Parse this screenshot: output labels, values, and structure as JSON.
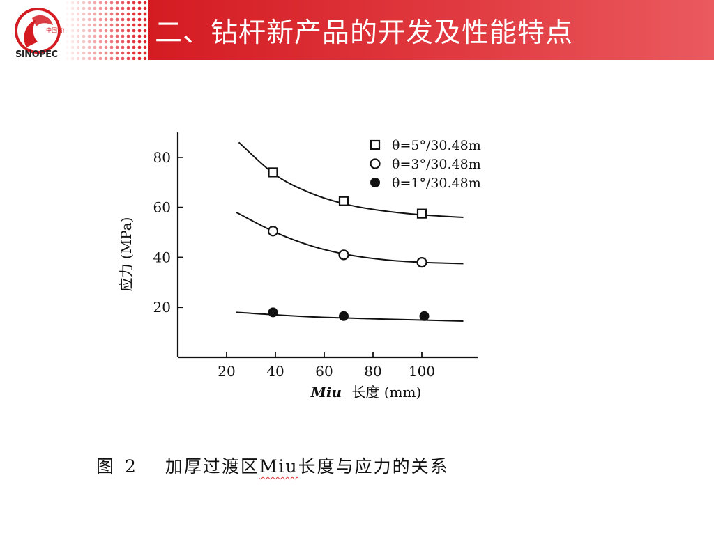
{
  "header": {
    "title": "二、钻杆新产品的开发及性能特点",
    "logo": {
      "icon": "sinopec-logo-icon",
      "wordmark": "SINOPEC",
      "brand_color": "#d41b22"
    },
    "bar_color": "#d41b22"
  },
  "chart_data": {
    "type": "scatter",
    "title": "",
    "xlabel_italic": "Miu",
    "xlabel_rest": "长度 (mm)",
    "ylabel": "应力 (MPa)",
    "xlim": [
      0,
      120
    ],
    "ylim": [
      0,
      90
    ],
    "x_ticks": [
      20,
      40,
      60,
      80,
      100
    ],
    "y_ticks": [
      20,
      40,
      60,
      80
    ],
    "grid": false,
    "legend_position": "top-right",
    "series": [
      {
        "name": "θ=5°/30.48m",
        "marker": "square",
        "x": [
          39,
          68,
          100
        ],
        "y": [
          74,
          62.5,
          57.5
        ],
        "fit": {
          "x": [
            25,
            40,
            55,
            70,
            85,
            100,
            117
          ],
          "y": [
            86,
            73,
            65.5,
            61,
            58.5,
            57,
            56
          ]
        }
      },
      {
        "name": "θ=3°/30.48m",
        "marker": "circle-open",
        "x": [
          39,
          68,
          100
        ],
        "y": [
          50.5,
          41,
          38
        ],
        "fit": {
          "x": [
            24,
            40,
            55,
            70,
            85,
            100,
            117
          ],
          "y": [
            58,
            50,
            44.5,
            41,
            39,
            38,
            37.5
          ]
        }
      },
      {
        "name": "θ=1°/30.48m",
        "marker": "circle-filled",
        "x": [
          39,
          68,
          101
        ],
        "y": [
          18,
          16.5,
          16.5
        ],
        "fit": {
          "x": [
            24,
            60,
            117
          ],
          "y": [
            18,
            16,
            14.5
          ]
        }
      }
    ]
  },
  "caption": {
    "figure_label": "图",
    "figure_number": "2",
    "text_before": "加厚过渡区",
    "text_miu": "Miu",
    "text_after": "长度与应力的关系"
  }
}
